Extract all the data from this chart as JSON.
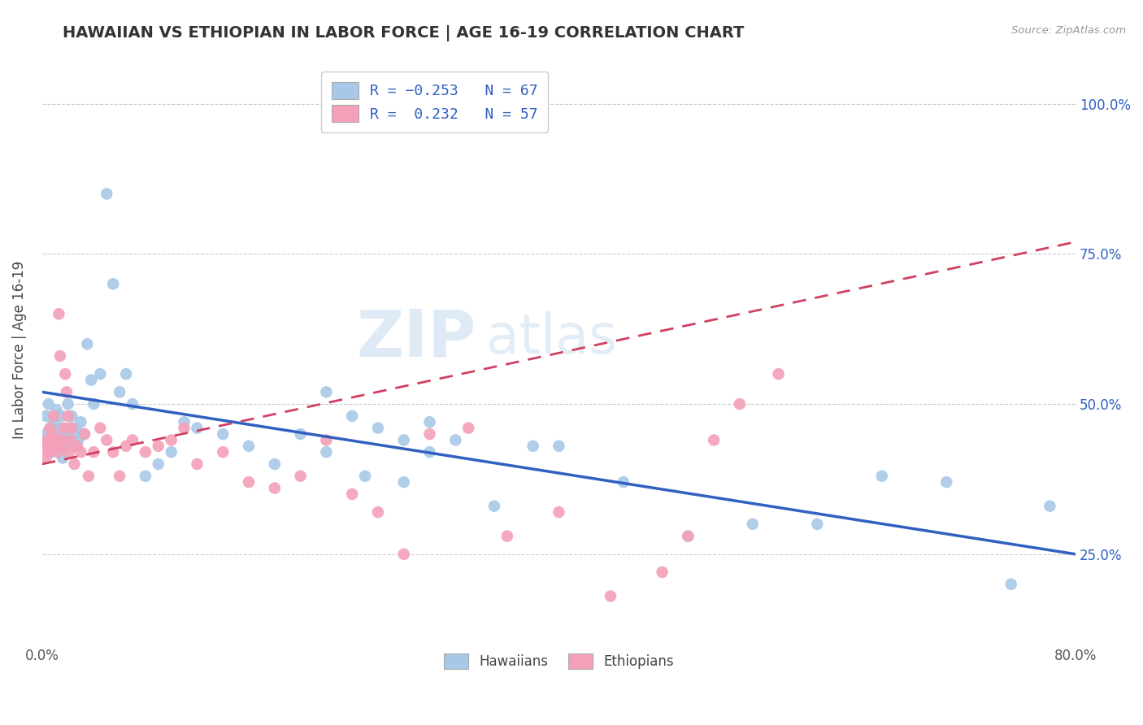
{
  "title": "HAWAIIAN VS ETHIOPIAN IN LABOR FORCE | AGE 16-19 CORRELATION CHART",
  "source_text": "Source: ZipAtlas.com",
  "ylabel": "In Labor Force | Age 16-19",
  "xlim": [
    0.0,
    80.0
  ],
  "ylim": [
    10.0,
    108.0
  ],
  "x_ticks": [
    0.0,
    20.0,
    40.0,
    60.0,
    80.0
  ],
  "x_tick_labels": [
    "0.0%",
    "",
    "",
    "",
    "80.0%"
  ],
  "right_y_ticks": [
    25.0,
    50.0,
    75.0,
    100.0
  ],
  "right_y_tick_labels": [
    "25.0%",
    "50.0%",
    "75.0%",
    "100.0%"
  ],
  "color_hawaiian": "#a8c8e8",
  "color_ethiopian": "#f4a0b8",
  "line_color_hawaiian": "#3060c0",
  "line_color_ethiopian": "#d04060",
  "background_color": "#ffffff",
  "grid_color": "#cccccc",
  "haw_line_x0": 0.0,
  "haw_line_y0": 52.0,
  "haw_line_x1": 80.0,
  "haw_line_y1": 25.0,
  "eth_line_x0": 0.0,
  "eth_line_y0": 40.0,
  "eth_line_x1": 80.0,
  "eth_line_y1": 77.0,
  "hawaiian_x": [
    0.2,
    0.3,
    0.4,
    0.5,
    0.6,
    0.7,
    0.8,
    0.9,
    1.0,
    1.1,
    1.2,
    1.3,
    1.4,
    1.5,
    1.6,
    1.7,
    1.8,
    1.9,
    2.0,
    2.1,
    2.2,
    2.3,
    2.4,
    2.5,
    2.6,
    2.8,
    3.0,
    3.2,
    3.5,
    3.8,
    4.0,
    4.5,
    5.0,
    5.5,
    6.0,
    6.5,
    7.0,
    8.0,
    9.0,
    10.0,
    11.0,
    12.0,
    14.0,
    16.0,
    18.0,
    20.0,
    22.0,
    25.0,
    28.0,
    30.0,
    32.0,
    35.0,
    38.0,
    40.0,
    45.0,
    50.0,
    55.0,
    60.0,
    65.0,
    70.0,
    75.0,
    78.0,
    22.0,
    24.0,
    26.0,
    28.0,
    30.0
  ],
  "hawaiian_y": [
    45,
    48,
    43,
    50,
    44,
    46,
    42,
    47,
    45,
    49,
    43,
    44,
    46,
    48,
    41,
    45,
    44,
    43,
    50,
    46,
    44,
    48,
    43,
    45,
    46,
    44,
    47,
    45,
    60,
    54,
    50,
    55,
    85,
    70,
    52,
    55,
    50,
    38,
    40,
    42,
    47,
    46,
    45,
    43,
    40,
    45,
    42,
    38,
    37,
    47,
    44,
    33,
    43,
    43,
    37,
    28,
    30,
    30,
    38,
    37,
    20,
    33,
    52,
    48,
    46,
    44,
    42
  ],
  "ethiopian_x": [
    0.2,
    0.3,
    0.4,
    0.5,
    0.6,
    0.7,
    0.8,
    0.9,
    1.0,
    1.1,
    1.2,
    1.3,
    1.4,
    1.5,
    1.6,
    1.7,
    1.8,
    1.9,
    2.0,
    2.1,
    2.2,
    2.3,
    2.5,
    2.7,
    3.0,
    3.3,
    3.6,
    4.0,
    4.5,
    5.0,
    5.5,
    6.0,
    6.5,
    7.0,
    8.0,
    9.0,
    10.0,
    11.0,
    12.0,
    14.0,
    16.0,
    18.0,
    20.0,
    22.0,
    24.0,
    26.0,
    28.0,
    30.0,
    33.0,
    36.0,
    40.0,
    44.0,
    48.0,
    50.0,
    52.0,
    54.0,
    57.0
  ],
  "ethiopian_y": [
    43,
    41,
    44,
    42,
    46,
    43,
    45,
    48,
    43,
    44,
    42,
    65,
    58,
    44,
    43,
    46,
    55,
    52,
    48,
    42,
    44,
    46,
    40,
    43,
    42,
    45,
    38,
    42,
    46,
    44,
    42,
    38,
    43,
    44,
    42,
    43,
    44,
    46,
    40,
    42,
    37,
    36,
    38,
    44,
    35,
    32,
    25,
    45,
    46,
    28,
    32,
    18,
    22,
    28,
    44,
    50,
    55
  ]
}
